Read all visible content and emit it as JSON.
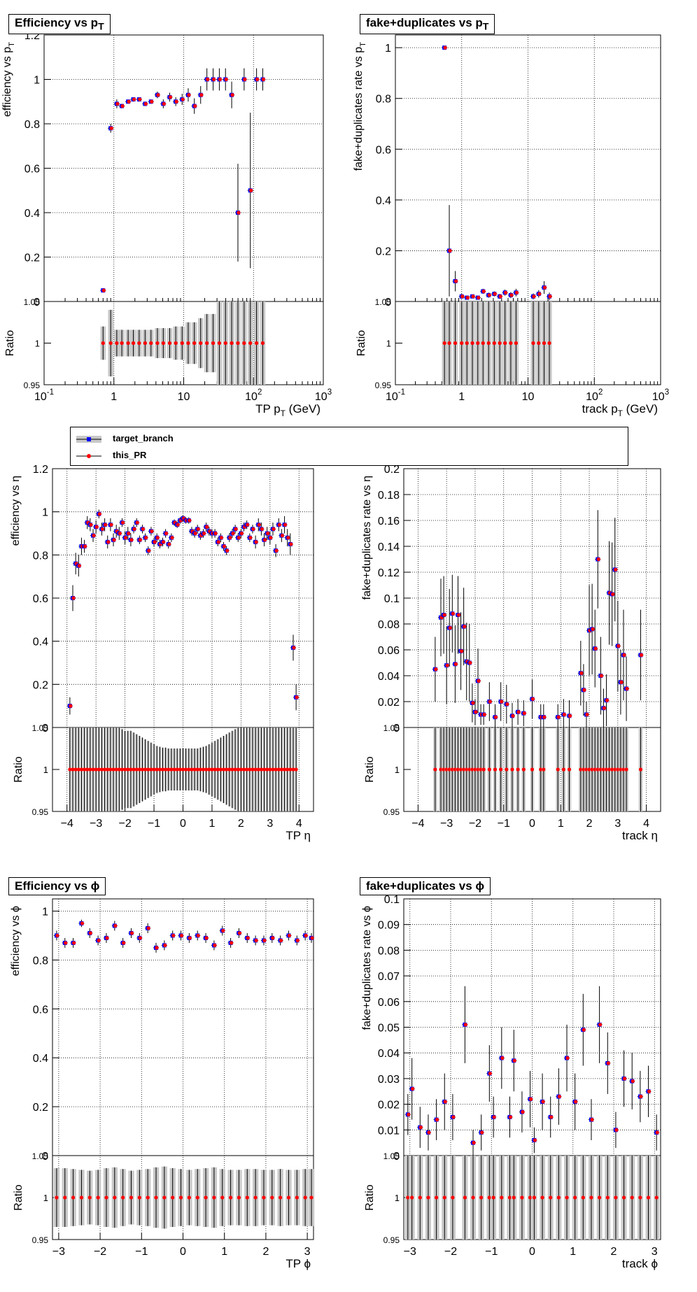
{
  "legend": {
    "entries": [
      {
        "label": "target_branch",
        "color": "#0000ff"
      },
      {
        "label": "this_PR",
        "color": "#ff0000"
      }
    ]
  },
  "colors": {
    "target": "#0000ff",
    "pr": "#ff0000",
    "band": "#c8c8c8"
  },
  "chart_data": [
    {
      "id": "eff_pt",
      "type": "scatter",
      "title": "Efficiency vs p_T",
      "ylabel": "efficiency vs p_T",
      "xlabel": "TP p_T (GeV)",
      "xscale": "log",
      "xlim": [
        0.1,
        1000
      ],
      "ylim": [
        0,
        1.2
      ],
      "yticks": [
        "0",
        "0.2",
        "0.4",
        "0.6",
        "0.8",
        "1",
        "1.2"
      ],
      "xticks": [
        "10^-1",
        "1",
        "10",
        "10^2",
        "10^3"
      ],
      "ratio": {
        "ylabel": "Ratio",
        "ylim": [
          0.95,
          1.05
        ],
        "yticks": [
          "0.95",
          "1",
          "1.05"
        ]
      },
      "x": [
        0.7,
        0.9,
        1.1,
        1.3,
        1.6,
        1.9,
        2.3,
        2.8,
        3.4,
        4.2,
        5.1,
        6.3,
        7.7,
        9.5,
        11.6,
        14.2,
        17.5,
        21.5,
        26.4,
        32.4,
        39.7,
        48.7,
        59.8,
        73.4,
        90.1,
        110.6,
        135.7
      ],
      "y": [
        0.05,
        0.78,
        0.89,
        0.88,
        0.9,
        0.91,
        0.91,
        0.89,
        0.9,
        0.93,
        0.89,
        0.92,
        0.9,
        0.91,
        0.93,
        0.88,
        0.93,
        1.0,
        1.0,
        1.0,
        1.0,
        0.93,
        0.4,
        1.0,
        0.5,
        1.0,
        1.0
      ],
      "yerr": [
        0.01,
        0.02,
        0.02,
        0.01,
        0.01,
        0.01,
        0.01,
        0.01,
        0.01,
        0.015,
        0.02,
        0.02,
        0.02,
        0.025,
        0.03,
        0.035,
        0.04,
        0.05,
        0.05,
        0.05,
        0.05,
        0.06,
        0.22,
        0.05,
        0.35,
        0.05,
        0.05
      ],
      "rerr": [
        0.02,
        0.04,
        0.016,
        0.016,
        0.016,
        0.016,
        0.016,
        0.016,
        0.016,
        0.018,
        0.018,
        0.018,
        0.02,
        0.02,
        0.025,
        0.025,
        0.03,
        0.035,
        0.035,
        0.05,
        0.05,
        0.05,
        0.05,
        0.05,
        0.05,
        0.05,
        0.05
      ]
    },
    {
      "id": "fake_pt",
      "type": "scatter",
      "title": "fake+duplicates vs p_T",
      "ylabel": "fake+duplicates rate vs p_T",
      "xlabel": "track p_T (GeV)",
      "xscale": "log",
      "xlim": [
        0.1,
        1000
      ],
      "ylim": [
        0,
        1.05
      ],
      "yticks": [
        "0",
        "0.2",
        "0.4",
        "0.6",
        "0.8",
        "1"
      ],
      "xticks": [
        "10^-1",
        "1",
        "10",
        "10^2",
        "10^3"
      ],
      "ratio": {
        "ylabel": "Ratio",
        "ylim": [
          0.95,
          1.05
        ],
        "yticks": [
          "0.95",
          "1",
          "1.05"
        ]
      },
      "x": [
        0.55,
        0.65,
        0.8,
        1.0,
        1.2,
        1.45,
        1.75,
        2.1,
        2.55,
        3.1,
        3.75,
        4.5,
        5.5,
        6.6,
        12.0,
        14.5,
        17.5,
        21.0
      ],
      "y": [
        1.0,
        0.2,
        0.08,
        0.02,
        0.015,
        0.02,
        0.015,
        0.04,
        0.025,
        0.03,
        0.02,
        0.035,
        0.025,
        0.035,
        0.02,
        0.03,
        0.055,
        0.02
      ],
      "yerr": [
        0.0,
        0.18,
        0.04,
        0.01,
        0.008,
        0.008,
        0.008,
        0.01,
        0.01,
        0.01,
        0.01,
        0.012,
        0.012,
        0.015,
        0.012,
        0.015,
        0.025,
        0.015
      ],
      "rerr": [
        0.05,
        0.05,
        0.05,
        0.05,
        0.05,
        0.05,
        0.05,
        0.05,
        0.05,
        0.05,
        0.05,
        0.05,
        0.05,
        0.05,
        0.05,
        0.05,
        0.05,
        0.05
      ]
    },
    {
      "id": "eff_eta",
      "type": "scatter",
      "title": "",
      "ylabel": "efficiency vs  η",
      "xlabel": "TP  η",
      "xscale": "linear",
      "xlim": [
        -4.5,
        4.5
      ],
      "ylim": [
        0,
        1.2
      ],
      "yticks": [
        "0",
        "0.2",
        "0.4",
        "0.6",
        "0.8",
        "1",
        "1.2"
      ],
      "xticks": [
        "−4",
        "−3",
        "−2",
        "−1",
        "0",
        "1",
        "2",
        "3",
        "4"
      ],
      "ratio": {
        "ylabel": "Ratio",
        "ylim": [
          0.95,
          1.05
        ],
        "yticks": [
          "0.95",
          "1",
          "1.05"
        ]
      },
      "x": [
        -3.9,
        -3.8,
        -3.7,
        -3.6,
        -3.5,
        -3.4,
        -3.3,
        -3.2,
        -3.1,
        -3.0,
        -2.9,
        -2.8,
        -2.7,
        -2.6,
        -2.5,
        -2.4,
        -2.3,
        -2.2,
        -2.1,
        -2.0,
        -1.9,
        -1.8,
        -1.7,
        -1.6,
        -1.5,
        -1.4,
        -1.3,
        -1.2,
        -1.1,
        -1.0,
        -0.9,
        -0.8,
        -0.7,
        -0.6,
        -0.5,
        -0.4,
        -0.3,
        -0.2,
        -0.1,
        0.0,
        0.1,
        0.2,
        0.3,
        0.4,
        0.5,
        0.6,
        0.7,
        0.8,
        0.9,
        1.0,
        1.1,
        1.2,
        1.3,
        1.4,
        1.5,
        1.6,
        1.7,
        1.8,
        1.9,
        2.0,
        2.1,
        2.2,
        2.3,
        2.4,
        2.5,
        2.6,
        2.7,
        2.8,
        2.9,
        3.0,
        3.1,
        3.2,
        3.3,
        3.4,
        3.5,
        3.6,
        3.7,
        3.8,
        3.9
      ],
      "y": [
        0.1,
        0.6,
        0.76,
        0.75,
        0.84,
        0.84,
        0.95,
        0.94,
        0.89,
        0.93,
        0.99,
        0.92,
        0.94,
        0.86,
        0.94,
        0.87,
        0.91,
        0.9,
        0.95,
        0.88,
        0.9,
        0.87,
        0.92,
        0.95,
        0.87,
        0.92,
        0.88,
        0.82,
        0.91,
        0.86,
        0.88,
        0.85,
        0.86,
        0.9,
        0.85,
        0.88,
        0.95,
        0.94,
        0.96,
        0.97,
        0.96,
        0.96,
        0.91,
        0.9,
        0.92,
        0.89,
        0.9,
        0.93,
        0.91,
        0.9,
        0.9,
        0.86,
        0.88,
        0.84,
        0.82,
        0.88,
        0.9,
        0.92,
        0.88,
        0.9,
        0.93,
        0.94,
        0.88,
        0.92,
        0.86,
        0.94,
        0.92,
        0.87,
        0.9,
        0.88,
        0.92,
        0.82,
        0.94,
        0.89,
        0.94,
        0.88,
        0.85,
        0.37,
        0.14
      ],
      "yerr": [
        0.04,
        0.06,
        0.05,
        0.05,
        0.04,
        0.03,
        0.03,
        0.03,
        0.03,
        0.03,
        0.02,
        0.03,
        0.03,
        0.03,
        0.03,
        0.03,
        0.03,
        0.03,
        0.02,
        0.03,
        0.03,
        0.03,
        0.02,
        0.02,
        0.02,
        0.02,
        0.02,
        0.02,
        0.02,
        0.02,
        0.02,
        0.02,
        0.02,
        0.02,
        0.02,
        0.02,
        0.015,
        0.015,
        0.015,
        0.015,
        0.015,
        0.015,
        0.02,
        0.02,
        0.02,
        0.02,
        0.02,
        0.02,
        0.02,
        0.02,
        0.02,
        0.02,
        0.02,
        0.02,
        0.02,
        0.02,
        0.02,
        0.02,
        0.02,
        0.02,
        0.02,
        0.02,
        0.02,
        0.02,
        0.03,
        0.03,
        0.03,
        0.03,
        0.03,
        0.03,
        0.03,
        0.03,
        0.03,
        0.03,
        0.04,
        0.04,
        0.05,
        0.06,
        0.06
      ],
      "rerr": [
        0.05,
        0.05,
        0.05,
        0.05,
        0.05,
        0.05,
        0.05,
        0.05,
        0.05,
        0.05,
        0.05,
        0.05,
        0.05,
        0.05,
        0.05,
        0.05,
        0.05,
        0.05,
        0.048,
        0.046,
        0.046,
        0.046,
        0.044,
        0.042,
        0.04,
        0.038,
        0.036,
        0.034,
        0.032,
        0.03,
        0.028,
        0.027,
        0.026,
        0.026,
        0.025,
        0.025,
        0.025,
        0.025,
        0.025,
        0.025,
        0.025,
        0.025,
        0.025,
        0.025,
        0.025,
        0.026,
        0.027,
        0.028,
        0.03,
        0.032,
        0.034,
        0.036,
        0.038,
        0.04,
        0.042,
        0.044,
        0.046,
        0.048,
        0.05,
        0.05,
        0.05,
        0.05,
        0.05,
        0.05,
        0.05,
        0.05,
        0.05,
        0.05,
        0.05,
        0.05,
        0.05,
        0.05,
        0.05,
        0.05,
        0.05,
        0.05,
        0.05,
        0.05,
        0.05
      ]
    },
    {
      "id": "fake_eta",
      "type": "scatter",
      "title": "",
      "ylabel": "fake+duplicates rate vs  η",
      "xlabel": "track  η",
      "xscale": "linear",
      "xlim": [
        -4.5,
        4.5
      ],
      "ylim": [
        0,
        0.2
      ],
      "yticks": [
        "0",
        "0.02",
        "0.04",
        "0.06",
        "0.08",
        "0.1",
        "0.12",
        "0.14",
        "0.16",
        "0.18",
        "0.2"
      ],
      "xticks": [
        "−4",
        "−3",
        "−2",
        "−1",
        "0",
        "1",
        "2",
        "3",
        "4"
      ],
      "ratio": {
        "ylabel": "Ratio",
        "ylim": [
          0.95,
          1.05
        ],
        "yticks": [
          "0.95",
          "1",
          "1.05"
        ]
      },
      "x": [
        -3.4,
        -3.2,
        -3.1,
        -3.0,
        -2.9,
        -2.8,
        -2.7,
        -2.6,
        -2.5,
        -2.4,
        -2.3,
        -2.2,
        -2.1,
        -2.0,
        -1.9,
        -1.8,
        -1.7,
        -1.5,
        -1.3,
        -1.1,
        -0.9,
        -0.7,
        -0.5,
        -0.3,
        0.0,
        0.3,
        0.4,
        0.9,
        1.1,
        1.3,
        1.7,
        1.8,
        1.9,
        2.0,
        2.1,
        2.2,
        2.3,
        2.4,
        2.5,
        2.6,
        2.7,
        2.8,
        2.9,
        3.0,
        3.1,
        3.2,
        3.3,
        3.8
      ],
      "y": [
        0.045,
        0.085,
        0.087,
        0.048,
        0.077,
        0.088,
        0.049,
        0.087,
        0.059,
        0.078,
        0.051,
        0.05,
        0.019,
        0.012,
        0.036,
        0.01,
        0.01,
        0.02,
        0.008,
        0.02,
        0.018,
        0.009,
        0.012,
        0.011,
        0.022,
        0.008,
        0.008,
        0.008,
        0.01,
        0.009,
        0.042,
        0.029,
        0.01,
        0.075,
        0.076,
        0.061,
        0.13,
        0.04,
        0.015,
        0.021,
        0.104,
        0.103,
        0.122,
        0.063,
        0.035,
        0.056,
        0.03,
        0.056
      ],
      "yerr": [
        0.025,
        0.03,
        0.03,
        0.03,
        0.03,
        0.03,
        0.03,
        0.03,
        0.03,
        0.03,
        0.03,
        0.03,
        0.015,
        0.01,
        0.025,
        0.008,
        0.008,
        0.015,
        0.01,
        0.015,
        0.015,
        0.01,
        0.01,
        0.01,
        0.015,
        0.01,
        0.01,
        0.01,
        0.012,
        0.012,
        0.025,
        0.02,
        0.01,
        0.035,
        0.035,
        0.03,
        0.038,
        0.03,
        0.015,
        0.02,
        0.04,
        0.04,
        0.04,
        0.035,
        0.025,
        0.035,
        0.025,
        0.035
      ],
      "rerr": [
        0.05,
        0.05,
        0.05,
        0.05,
        0.05,
        0.05,
        0.05,
        0.05,
        0.05,
        0.05,
        0.05,
        0.05,
        0.05,
        0.05,
        0.05,
        0.05,
        0.05,
        0.05,
        0.05,
        0.05,
        0.05,
        0.05,
        0.05,
        0.05,
        0.05,
        0.05,
        0.05,
        0.05,
        0.05,
        0.05,
        0.05,
        0.05,
        0.05,
        0.05,
        0.05,
        0.05,
        0.05,
        0.05,
        0.05,
        0.05,
        0.05,
        0.05,
        0.05,
        0.05,
        0.05,
        0.05,
        0.05,
        0.05
      ]
    },
    {
      "id": "eff_phi",
      "type": "scatter",
      "title": "Efficiency vs  ϕ",
      "ylabel": "efficiency vs  ϕ",
      "xlabel": "TP  ϕ",
      "xscale": "linear",
      "xlim": [
        -3.15,
        3.15
      ],
      "ylim": [
        0,
        1.05
      ],
      "yticks": [
        "0",
        "0.2",
        "0.4",
        "0.6",
        "0.8",
        "1"
      ],
      "xticks": [
        "−3",
        "−2",
        "−1",
        "0",
        "1",
        "2",
        "3"
      ],
      "ratio": {
        "ylabel": "Ratio",
        "ylim": [
          0.95,
          1.05
        ],
        "yticks": [
          "0.95",
          "1",
          "1.05"
        ]
      },
      "x": [
        -3.05,
        -2.85,
        -2.65,
        -2.45,
        -2.25,
        -2.05,
        -1.85,
        -1.65,
        -1.45,
        -1.25,
        -1.05,
        -0.85,
        -0.65,
        -0.45,
        -0.25,
        -0.05,
        0.15,
        0.35,
        0.55,
        0.75,
        0.95,
        1.15,
        1.35,
        1.55,
        1.75,
        1.95,
        2.15,
        2.35,
        2.55,
        2.75,
        2.95,
        3.1
      ],
      "y": [
        0.9,
        0.87,
        0.87,
        0.95,
        0.91,
        0.88,
        0.89,
        0.94,
        0.87,
        0.91,
        0.89,
        0.93,
        0.85,
        0.86,
        0.9,
        0.9,
        0.89,
        0.9,
        0.89,
        0.86,
        0.92,
        0.87,
        0.91,
        0.89,
        0.88,
        0.88,
        0.89,
        0.88,
        0.9,
        0.88,
        0.9,
        0.89
      ],
      "yerr": [
        0.02,
        0.02,
        0.02,
        0.015,
        0.02,
        0.02,
        0.02,
        0.02,
        0.02,
        0.02,
        0.02,
        0.02,
        0.02,
        0.02,
        0.02,
        0.02,
        0.02,
        0.02,
        0.02,
        0.02,
        0.02,
        0.02,
        0.02,
        0.02,
        0.02,
        0.02,
        0.02,
        0.02,
        0.02,
        0.02,
        0.02,
        0.02
      ],
      "rerr": [
        0.035,
        0.035,
        0.034,
        0.033,
        0.032,
        0.033,
        0.035,
        0.036,
        0.034,
        0.032,
        0.033,
        0.034,
        0.036,
        0.037,
        0.035,
        0.034,
        0.033,
        0.034,
        0.035,
        0.036,
        0.034,
        0.033,
        0.033,
        0.034,
        0.034,
        0.033,
        0.033,
        0.034,
        0.033,
        0.033,
        0.034,
        0.034
      ]
    },
    {
      "id": "fake_phi",
      "type": "scatter",
      "title": "fake+duplicates vs  ϕ",
      "ylabel": "fake+duplicates rate vs  ϕ",
      "xlabel": "track  ϕ",
      "xscale": "linear",
      "xlim": [
        -3.15,
        3.15
      ],
      "ylim": [
        0,
        0.1
      ],
      "yticks": [
        "0",
        "0.01",
        "0.02",
        "0.03",
        "0.04",
        "0.05",
        "0.06",
        "0.07",
        "0.08",
        "0.09",
        "0.1"
      ],
      "xticks": [
        "−3",
        "−2",
        "−1",
        "0",
        "1",
        "2",
        "3"
      ],
      "ratio": {
        "ylabel": "Ratio",
        "ylim": [
          0.95,
          1.05
        ],
        "yticks": [
          "0.95",
          "1",
          "1.05"
        ]
      },
      "x": [
        -3.05,
        -2.95,
        -2.75,
        -2.55,
        -2.35,
        -2.15,
        -1.95,
        -1.65,
        -1.45,
        -1.25,
        -1.05,
        -0.95,
        -0.75,
        -0.55,
        -0.45,
        -0.25,
        -0.05,
        0.05,
        0.25,
        0.45,
        0.65,
        0.85,
        1.05,
        1.25,
        1.45,
        1.65,
        1.85,
        2.05,
        2.25,
        2.45,
        2.65,
        2.85,
        3.05
      ],
      "y": [
        0.016,
        0.026,
        0.011,
        0.009,
        0.014,
        0.021,
        0.015,
        0.051,
        0.005,
        0.009,
        0.032,
        0.015,
        0.038,
        0.015,
        0.037,
        0.017,
        0.022,
        0.006,
        0.021,
        0.015,
        0.023,
        0.038,
        0.021,
        0.049,
        0.014,
        0.051,
        0.036,
        0.01,
        0.03,
        0.029,
        0.023,
        0.025,
        0.009
      ],
      "yerr": [
        0.008,
        0.012,
        0.008,
        0.007,
        0.008,
        0.011,
        0.009,
        0.015,
        0.005,
        0.007,
        0.011,
        0.008,
        0.012,
        0.008,
        0.012,
        0.008,
        0.011,
        0.005,
        0.011,
        0.008,
        0.011,
        0.013,
        0.011,
        0.014,
        0.008,
        0.015,
        0.012,
        0.007,
        0.011,
        0.011,
        0.01,
        0.01,
        0.007
      ],
      "rerr": [
        0.05,
        0.05,
        0.05,
        0.05,
        0.05,
        0.05,
        0.05,
        0.05,
        0.05,
        0.05,
        0.05,
        0.05,
        0.05,
        0.05,
        0.05,
        0.05,
        0.05,
        0.05,
        0.05,
        0.05,
        0.05,
        0.05,
        0.05,
        0.05,
        0.05,
        0.05,
        0.05,
        0.05,
        0.05,
        0.05,
        0.05,
        0.05,
        0.05
      ]
    }
  ]
}
